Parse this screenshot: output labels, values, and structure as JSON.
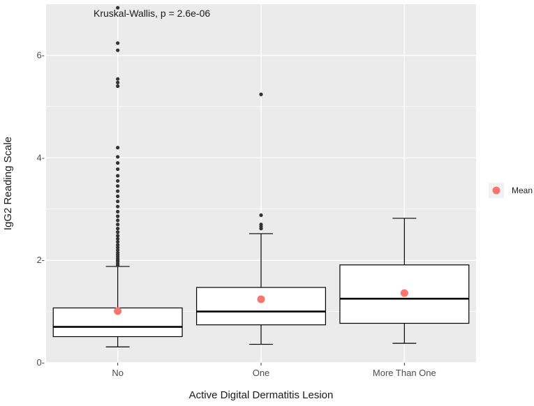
{
  "chart_data": {
    "type": "boxplot",
    "title": "",
    "xlabel": "Active Digital Dermatitis Lesion",
    "ylabel": "IgG2 Reading Scale",
    "annotation": "Kruskal-Wallis, p = 2.6e-06",
    "categories": [
      "No",
      "One",
      "More Than One"
    ],
    "yticks": [
      0,
      2,
      4,
      6
    ],
    "ytick_labels": [
      "0-",
      "2-",
      "4-",
      "6-"
    ],
    "ylim": [
      0,
      7.0
    ],
    "grid": true,
    "legend": {
      "placement": "right",
      "entries": [
        {
          "label": "Mean",
          "color": "#F8766D"
        }
      ]
    },
    "boxes": [
      {
        "category": "No",
        "whisker_low": 0.31,
        "q1": 0.51,
        "median": 0.7,
        "q3": 1.07,
        "whisker_high": 1.88,
        "mean": 1.01,
        "outliers": [
          1.9,
          1.93,
          1.97,
          2.0,
          2.03,
          2.07,
          2.11,
          2.15,
          2.2,
          2.25,
          2.3,
          2.36,
          2.42,
          2.48,
          2.55,
          2.62,
          2.7,
          2.78,
          2.86,
          2.95,
          3.05,
          3.15,
          3.25,
          3.35,
          3.45,
          3.55,
          3.65,
          3.78,
          3.9,
          4.02,
          4.2,
          5.4,
          5.47,
          5.54,
          6.1,
          6.24,
          6.93
        ]
      },
      {
        "category": "One",
        "whisker_low": 0.36,
        "q1": 0.74,
        "median": 1.0,
        "q3": 1.47,
        "whisker_high": 2.52,
        "mean": 1.24,
        "outliers": [
          2.62,
          2.66,
          2.7,
          2.88,
          5.24
        ]
      },
      {
        "category": "More Than One",
        "whisker_low": 0.38,
        "q1": 0.77,
        "median": 1.25,
        "q3": 1.91,
        "whisker_high": 2.82,
        "mean": 1.36,
        "outliers": []
      }
    ],
    "colors": {
      "panel": "#EBEBEB",
      "grid": "#FFFFFF",
      "box_fill": "#FFFFFF",
      "box_line": "#000000",
      "outlier": "#333333",
      "mean": "#F8766D"
    }
  }
}
